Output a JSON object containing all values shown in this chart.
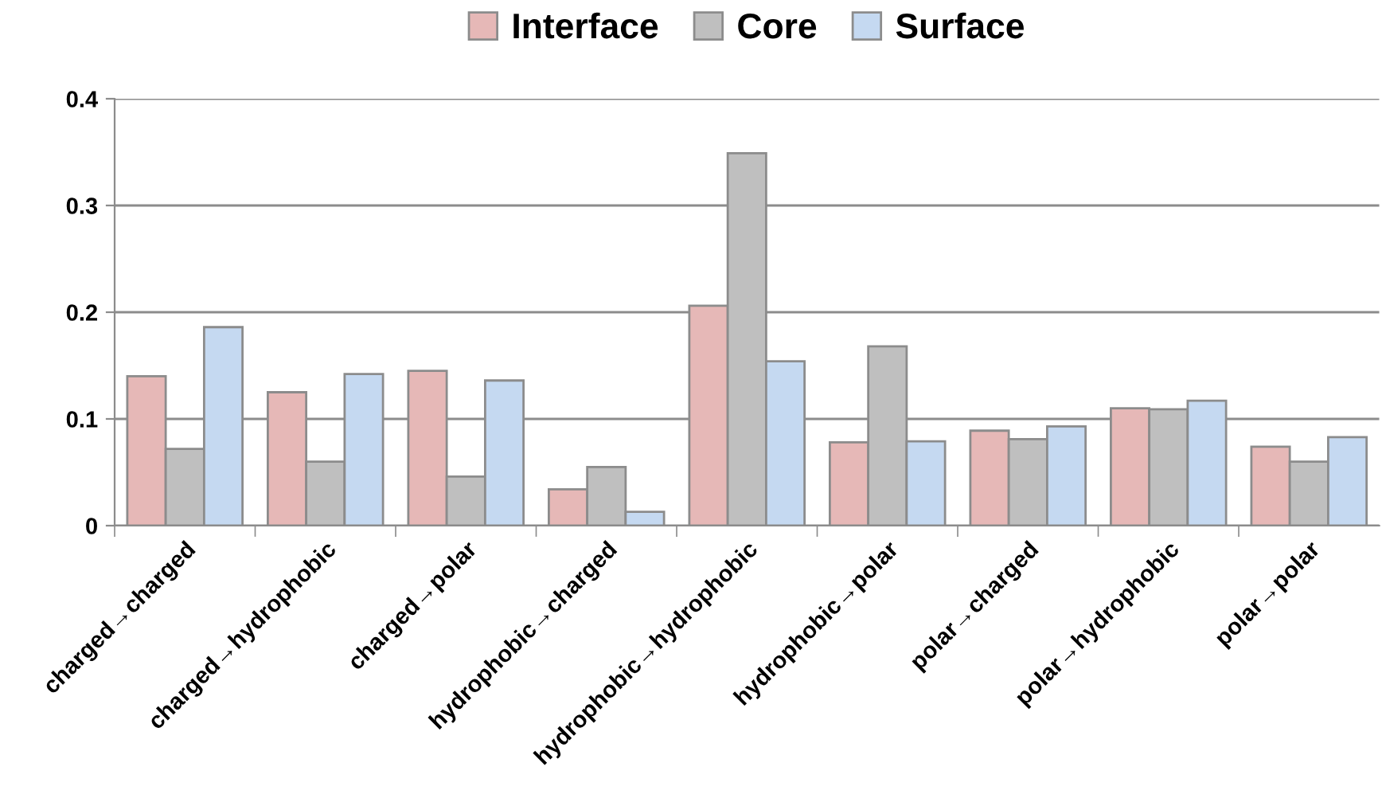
{
  "chart_data": {
    "type": "bar",
    "categories": [
      "charged→charged",
      "charged→hydrophobic",
      "charged→polar",
      "hydrophobic→charged",
      "hydrophobic→hydrophobic",
      "hydrophobic→polar",
      "polar→charged",
      "polar→hydrophobic",
      "polar→polar"
    ],
    "series": [
      {
        "name": "Interface",
        "color": "#e6b8b7",
        "values": [
          0.14,
          0.125,
          0.145,
          0.034,
          0.206,
          0.078,
          0.089,
          0.11,
          0.074
        ]
      },
      {
        "name": "Core",
        "color": "#bfbfbf",
        "values": [
          0.072,
          0.06,
          0.046,
          0.055,
          0.349,
          0.168,
          0.081,
          0.109,
          0.06
        ]
      },
      {
        "name": "Surface",
        "color": "#c5d9f1",
        "values": [
          0.186,
          0.142,
          0.136,
          0.013,
          0.154,
          0.079,
          0.093,
          0.117,
          0.083
        ]
      }
    ],
    "ylim": [
      0,
      0.4
    ],
    "yticks": [
      0,
      0.1,
      0.2,
      0.3,
      0.4
    ],
    "grid": "y",
    "legend": "top"
  }
}
